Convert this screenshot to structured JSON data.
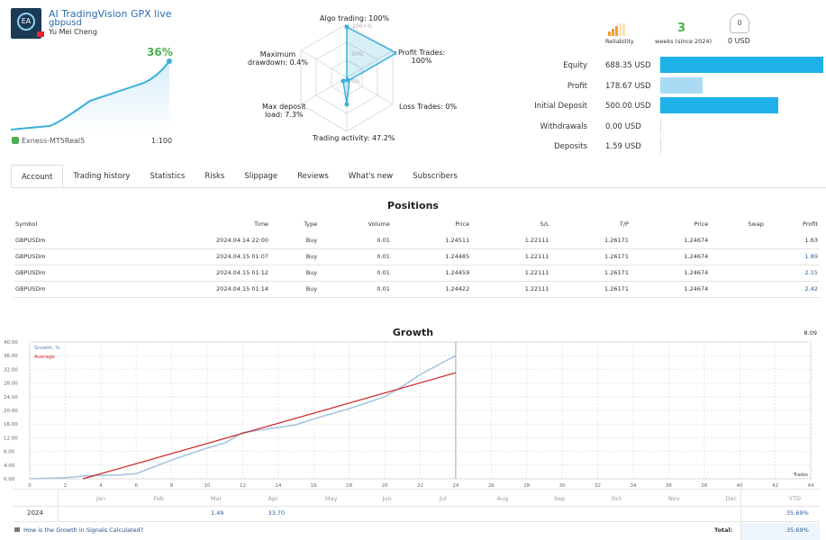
{
  "header": {
    "title": "AI TradingVision GPX live",
    "subtitle": "gbpusd",
    "author": "Yu Mei Cheng",
    "growth_pct": "36%",
    "broker": "Exness-MT5Real5",
    "leverage": "1:100",
    "logo_text": "EA"
  },
  "radar": {
    "algo": "Algo trading: 100%",
    "scale100": "100+%",
    "scale50": "50%",
    "scale0": "0%",
    "profit_trades": "Profit Trades:",
    "profit_trades_val": "100%",
    "loss": "Loss Trades: 0%",
    "activity": "Trading activity: 47.2%",
    "deposit_load_1": "Max deposit",
    "deposit_load_2": "load: 7.3%",
    "drawdown_1": "Maximum",
    "drawdown_2": "drawdown: 0.4%"
  },
  "summary": {
    "reliability": "Reliability",
    "weeks": "3",
    "weeks_label": "weeks (since 2024)",
    "subscribers": "0",
    "subscribers_usd": "0 USD",
    "rows": [
      {
        "label": "Equity",
        "value": "688.35 USD",
        "fraction": 1.0
      },
      {
        "label": "Profit",
        "value": "178.67 USD",
        "fraction": 0.26
      },
      {
        "label": "Initial Deposit",
        "value": "500.00 USD",
        "fraction": 0.726
      },
      {
        "label": "Withdrawals",
        "value": "0.00 USD",
        "fraction": 0
      },
      {
        "label": "Deposits",
        "value": "1.59 USD",
        "fraction": 0
      }
    ]
  },
  "tabs": [
    "Account",
    "Trading history",
    "Statistics",
    "Risks",
    "Slippage",
    "Reviews",
    "What's new",
    "Subscribers"
  ],
  "positions": {
    "title": "Positions",
    "headers": [
      "Symbol",
      "Time",
      "Type",
      "Volume",
      "Price",
      "S/L",
      "T/P",
      "Price",
      "Swap",
      "Profit"
    ],
    "rows": [
      [
        "GBPUSDm",
        "2024.04.14 22:00",
        "Buy",
        "0.01",
        "1.24511",
        "1.22111",
        "1.26171",
        "1.24674",
        "",
        "1.63"
      ],
      [
        "GBPUSDm",
        "2024.04.15 01:07",
        "Buy",
        "0.01",
        "1.24485",
        "1.22111",
        "1.26171",
        "1.24674",
        "",
        "1.89"
      ],
      [
        "GBPUSDm",
        "2024.04.15 01:12",
        "Buy",
        "0.01",
        "1.24459",
        "1.22111",
        "1.26171",
        "1.24674",
        "",
        "2.15"
      ],
      [
        "GBPUSDm",
        "2024.04.15 01:14",
        "Buy",
        "0.01",
        "1.24422",
        "1.22111",
        "1.26171",
        "1.24674",
        "",
        "2.42"
      ]
    ],
    "total": "8.09"
  },
  "chart_data": {
    "type": "line",
    "title": "Growth",
    "xlabel": "Trades",
    "ylim": [
      0,
      40
    ],
    "xlim": [
      0,
      44
    ],
    "yticks": [
      "0.00",
      "4.00",
      "8.00",
      "12.00",
      "16.00",
      "20.00",
      "24.00",
      "28.00",
      "32.00",
      "36.00",
      "40.00"
    ],
    "xticks": [
      "0",
      "2",
      "4",
      "6",
      "8",
      "10",
      "12",
      "14",
      "16",
      "18",
      "20",
      "22",
      "24",
      "26",
      "28",
      "30",
      "32",
      "34",
      "36",
      "38",
      "40",
      "42",
      "44"
    ],
    "series": [
      {
        "name": "Growth, %",
        "color": "#a8c4e0",
        "x": [
          0,
          2,
          3,
          4,
          5,
          6,
          8,
          10,
          11,
          12,
          14,
          15,
          16,
          18,
          20,
          21,
          22,
          24
        ],
        "y": [
          0,
          0.3,
          0.8,
          1.0,
          1.1,
          1.5,
          5.5,
          9,
          10.5,
          13.5,
          15,
          15.8,
          17.5,
          20.5,
          24,
          27,
          30.5,
          36
        ]
      },
      {
        "name": "Average",
        "color": "#cc2222",
        "x": [
          3,
          24
        ],
        "y": [
          0,
          31
        ]
      }
    ]
  },
  "year_table": {
    "months": [
      "Jan",
      "Feb",
      "Mar",
      "Apr",
      "May",
      "Jun",
      "Jul",
      "Aug",
      "Sep",
      "Oct",
      "Nov",
      "Dec"
    ],
    "ytd": "YTD",
    "year": "2024",
    "values": [
      "",
      "",
      "1.49",
      "33.70",
      "",
      "",
      "",
      "",
      "",
      "",
      "",
      ""
    ],
    "year_ytd": "35.69%",
    "total_label": "Total:",
    "total": "35.69%",
    "help": "How is the Growth in Signals Calculated?"
  }
}
